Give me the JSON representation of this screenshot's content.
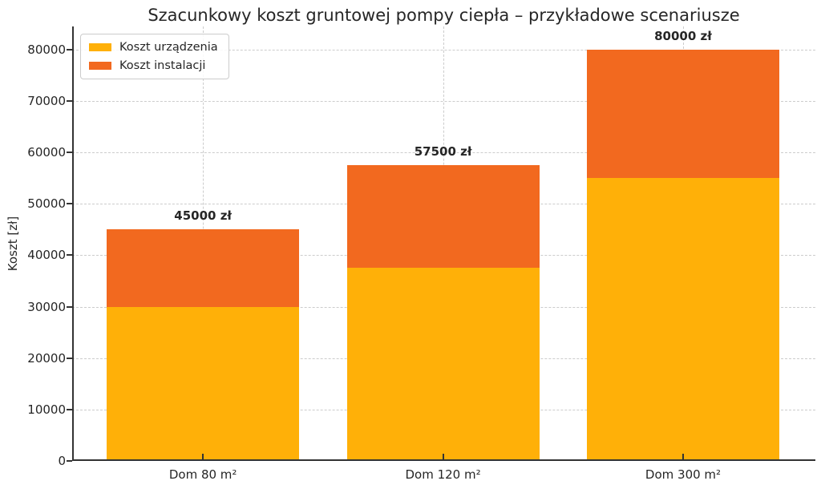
{
  "chart_data": {
    "type": "bar",
    "stacked": true,
    "title": "Szacunkowy koszt gruntowej pompy ciepła – przykładowe scenariusze",
    "xlabel": "",
    "ylabel": "Koszt [zł]",
    "categories": [
      "Dom 80 m²",
      "Dom 120 m²",
      "Dom 300 m²"
    ],
    "series": [
      {
        "name": "Koszt urządzenia",
        "values": [
          30000,
          37500,
          55000
        ],
        "color": "#FFB008"
      },
      {
        "name": "Koszt instalacji",
        "values": [
          15000,
          20000,
          25000
        ],
        "color": "#F2691F"
      }
    ],
    "totals": [
      45000,
      57500,
      80000
    ],
    "total_labels": [
      "45000 zł",
      "57500 zł",
      "80000 zł"
    ],
    "ylim": [
      0,
      84500
    ],
    "yticks": [
      0,
      10000,
      20000,
      30000,
      40000,
      50000,
      60000,
      70000,
      80000
    ],
    "grid": "dashed, horizontal at yticks and vertical at bar centers, behind bars",
    "legend_position": "upper left"
  },
  "colors": {
    "axis": "#333333",
    "grid": "#cccccc",
    "text": "#262626",
    "background": "#ffffff"
  }
}
